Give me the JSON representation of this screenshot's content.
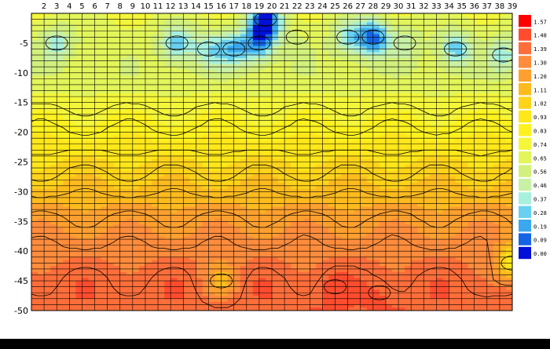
{
  "chart_data": {
    "type": "heatmap",
    "title": "",
    "xlabel": "",
    "ylabel": "",
    "x": [
      2,
      3,
      4,
      5,
      6,
      7,
      8,
      9,
      10,
      11,
      12,
      13,
      14,
      15,
      16,
      17,
      18,
      19,
      20,
      21,
      22,
      23,
      24,
      25,
      26,
      27,
      28,
      29,
      30,
      31,
      32,
      33,
      34,
      35,
      36,
      37,
      38,
      39
    ],
    "xlim": [
      1,
      39
    ],
    "y_ticks": [
      -5,
      -10,
      -15,
      -20,
      -25,
      -30,
      -35,
      -40,
      -45,
      -50
    ],
    "ylim": [
      -50,
      0
    ],
    "grid": true,
    "contour_lines": true,
    "colorbar": {
      "position": "right",
      "levels": [
        "1.57",
        "1.48",
        "1.39",
        "1.30",
        "1.20",
        "1.11",
        "1.02",
        "0.93",
        "0.83",
        "0.74",
        "0.65",
        "0.56",
        "0.46",
        "0.37",
        "0.28",
        "0.19",
        "0.09",
        "0.00"
      ],
      "colors": [
        "#ff0000",
        "#ff4c2e",
        "#ff6e3a",
        "#ff8c3c",
        "#ffa02e",
        "#ffbb1e",
        "#ffd31a",
        "#ffe71a",
        "#fdf21f",
        "#f4f63a",
        "#e2f55a",
        "#d2f07c",
        "#c8f0a6",
        "#a6f0dc",
        "#68d0f0",
        "#3aa8ee",
        "#1664e6",
        "#0010d8"
      ]
    },
    "depth_profile": [
      {
        "depth": 0,
        "value": 0.7
      },
      {
        "depth": -5,
        "value": 0.64
      },
      {
        "depth": -10,
        "value": 0.63
      },
      {
        "depth": -15,
        "value": 0.72
      },
      {
        "depth": -20,
        "value": 0.85
      },
      {
        "depth": -25,
        "value": 0.98
      },
      {
        "depth": -30,
        "value": 1.1
      },
      {
        "depth": -35,
        "value": 1.22
      },
      {
        "depth": -40,
        "value": 1.32
      },
      {
        "depth": -45,
        "value": 1.4
      },
      {
        "depth": -50,
        "value": 1.43
      }
    ],
    "anomalies": [
      {
        "x": 3,
        "depth": -5,
        "value": 0.37
      },
      {
        "x": 12.5,
        "depth": -5,
        "value": 0.28
      },
      {
        "x": 15,
        "depth": -6,
        "value": 0.37
      },
      {
        "x": 17,
        "depth": -6,
        "value": 0.28
      },
      {
        "x": 19.5,
        "depth": -1,
        "value": 0.05
      },
      {
        "x": 19,
        "depth": -5,
        "value": 0.2
      },
      {
        "x": 22,
        "depth": -4,
        "value": 0.6
      },
      {
        "x": 26,
        "depth": -4,
        "value": 0.37
      },
      {
        "x": 28,
        "depth": -4,
        "value": 0.1
      },
      {
        "x": 30.5,
        "depth": -5,
        "value": 0.46
      },
      {
        "x": 34.5,
        "depth": -6,
        "value": 0.28
      },
      {
        "x": 38.3,
        "depth": -7,
        "value": 0.37
      },
      {
        "x": 16,
        "depth": -45,
        "value": 1.15
      },
      {
        "x": 25,
        "depth": -46,
        "value": 1.47
      },
      {
        "x": 28.5,
        "depth": -47,
        "value": 1.45
      },
      {
        "x": 39,
        "depth": -42,
        "value": 0.9
      }
    ]
  }
}
